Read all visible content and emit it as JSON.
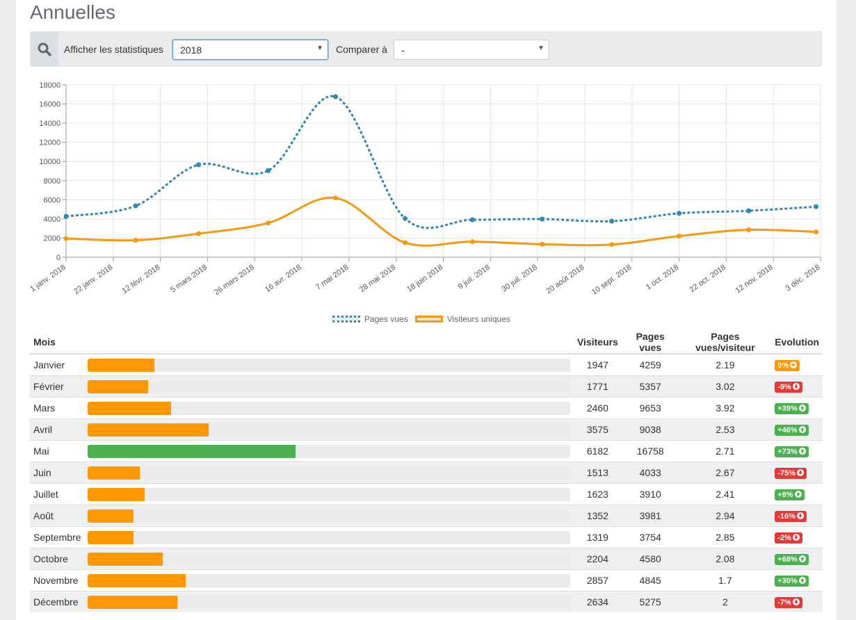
{
  "page": {
    "title": "Annuelles"
  },
  "filters": {
    "show_label": "Afficher les statistiques",
    "year_value": "2018",
    "compare_label": "Comparer à",
    "compare_value": "-"
  },
  "chart_data": {
    "type": "line",
    "x": [
      "1 janv. 2018",
      "22 janv. 2018",
      "12 févr. 2018",
      "5 mars 2018",
      "26 mars 2018",
      "16 avr. 2018",
      "7 mai 2018",
      "28 mai 2018",
      "18 juin 2018",
      "9 juil. 2018",
      "30 juil. 2018",
      "20 août 2018",
      "10 sept. 2018",
      "1 oct. 2018",
      "22 oct. 2018",
      "12 nov. 2018",
      "3 déc. 2018"
    ],
    "yticks": [
      0,
      2000,
      4000,
      6000,
      8000,
      10000,
      12000,
      14000,
      16000,
      18000
    ],
    "ylim": [
      0,
      18000
    ],
    "grid": true,
    "legend": "bottom",
    "series": [
      {
        "name": "Pages vues",
        "color": "#2e86b5",
        "style": "dashed",
        "points": [
          [
            "2018-01-01",
            4259
          ],
          [
            "2018-02-01",
            5357
          ],
          [
            "2018-03-01",
            9653
          ],
          [
            "2018-04-01",
            9038
          ],
          [
            "2018-05-01",
            16758
          ],
          [
            "2018-06-01",
            4033
          ],
          [
            "2018-07-01",
            3910
          ],
          [
            "2018-08-01",
            3981
          ],
          [
            "2018-09-01",
            3754
          ],
          [
            "2018-10-01",
            4580
          ],
          [
            "2018-11-01",
            4845
          ],
          [
            "2018-12-01",
            5275
          ]
        ]
      },
      {
        "name": "Visiteurs uniques",
        "color": "#f59a0f",
        "style": "solid",
        "points": [
          [
            "2018-01-01",
            1947
          ],
          [
            "2018-02-01",
            1771
          ],
          [
            "2018-03-01",
            2460
          ],
          [
            "2018-04-01",
            3575
          ],
          [
            "2018-05-01",
            6182
          ],
          [
            "2018-06-01",
            1513
          ],
          [
            "2018-07-01",
            1623
          ],
          [
            "2018-08-01",
            1352
          ],
          [
            "2018-09-01",
            1319
          ],
          [
            "2018-10-01",
            2204
          ],
          [
            "2018-11-01",
            2857
          ],
          [
            "2018-12-01",
            2634
          ]
        ]
      }
    ]
  },
  "table": {
    "headers": {
      "month": "Mois",
      "visitors": "Visiteurs",
      "pageviews": "Pages vues",
      "ratio": "Pages vues/visiteur",
      "evolution": "Evolution"
    },
    "rows": [
      {
        "month": "Janvier",
        "visitors": "1947",
        "pageviews": "4259",
        "ratio": "2.19",
        "evolution": "0%",
        "trend": "flat",
        "bar": 0.138
      },
      {
        "month": "Février",
        "visitors": "1771",
        "pageviews": "5357",
        "ratio": "3.02",
        "evolution": "-9%",
        "trend": "down",
        "bar": 0.125
      },
      {
        "month": "Mars",
        "visitors": "2460",
        "pageviews": "9653",
        "ratio": "3.92",
        "evolution": "+39%",
        "trend": "up",
        "bar": 0.172
      },
      {
        "month": "Avril",
        "visitors": "3575",
        "pageviews": "9038",
        "ratio": "2.53",
        "evolution": "+46%",
        "trend": "up",
        "bar": 0.25
      },
      {
        "month": "Mai",
        "visitors": "6182",
        "pageviews": "16758",
        "ratio": "2.71",
        "evolution": "+73%",
        "trend": "up",
        "bar": 0.43,
        "best": true
      },
      {
        "month": "Juin",
        "visitors": "1513",
        "pageviews": "4033",
        "ratio": "2.67",
        "evolution": "-75%",
        "trend": "down",
        "bar": 0.108
      },
      {
        "month": "Juillet",
        "visitors": "1623",
        "pageviews": "3910",
        "ratio": "2.41",
        "evolution": "+8%",
        "trend": "up",
        "bar": 0.117
      },
      {
        "month": "Août",
        "visitors": "1352",
        "pageviews": "3981",
        "ratio": "2.94",
        "evolution": "-16%",
        "trend": "down",
        "bar": 0.095
      },
      {
        "month": "Septembre",
        "visitors": "1319",
        "pageviews": "3754",
        "ratio": "2.85",
        "evolution": "-2%",
        "trend": "down",
        "bar": 0.095
      },
      {
        "month": "Octobre",
        "visitors": "2204",
        "pageviews": "4580",
        "ratio": "2.08",
        "evolution": "+68%",
        "trend": "up",
        "bar": 0.155
      },
      {
        "month": "Novembre",
        "visitors": "2857",
        "pageviews": "4845",
        "ratio": "1.7",
        "evolution": "+30%",
        "trend": "up",
        "bar": 0.203
      },
      {
        "month": "Décembre",
        "visitors": "2634",
        "pageviews": "5275",
        "ratio": "2",
        "evolution": "-7%",
        "trend": "down",
        "bar": 0.185
      }
    ]
  },
  "colors": {
    "up": "#4caf50",
    "down": "#e53935",
    "flat": "#ff9800",
    "bar": "#ff9800",
    "bar_best": "#4caf50"
  }
}
